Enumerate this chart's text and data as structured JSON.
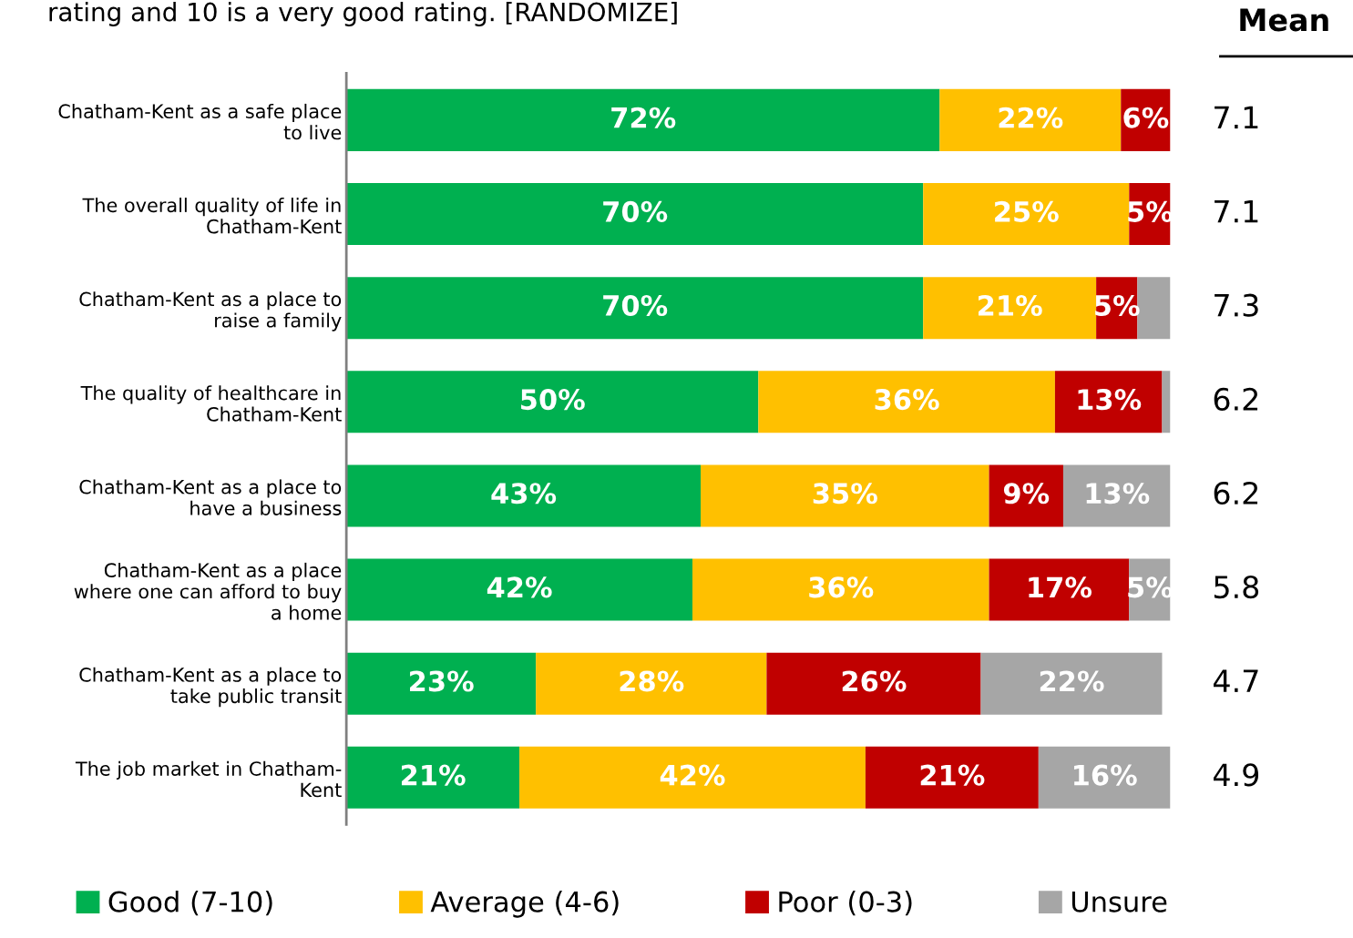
{
  "chart_data": {
    "type": "bar",
    "orientation": "horizontal",
    "stacked": true,
    "title": "rating and 10 is a very good rating. [RANDOMIZE]",
    "categories": [
      "Chatham-Kent as a safe place\nto live",
      "The overall quality of life in\nChatham-Kent",
      "Chatham-Kent as a place to\nraise a family",
      "The quality of healthcare in\nChatham-Kent",
      "Chatham-Kent as a place to\nhave a business",
      "Chatham-Kent as a place\nwhere one can afford to buy\na home",
      "Chatham-Kent as a place to\ntake public transit",
      "The job market in Chatham-\nKent"
    ],
    "series": [
      {
        "name": "Good (7-10)",
        "color": "#00b050",
        "values": [
          72,
          70,
          70,
          50,
          43,
          42,
          23,
          21
        ],
        "value_labels": [
          "72%",
          "70%",
          "70%",
          "50%",
          "43%",
          "42%",
          "23%",
          "21%"
        ]
      },
      {
        "name": "Average (4-6)",
        "color": "#ffc000",
        "values": [
          22,
          25,
          21,
          36,
          35,
          36,
          28,
          42
        ],
        "value_labels": [
          "22%",
          "25%",
          "21%",
          "36%",
          "35%",
          "36%",
          "28%",
          "42%"
        ]
      },
      {
        "name": "Poor (0-3)",
        "color": "#c00000",
        "values": [
          6,
          5,
          5,
          13,
          9,
          17,
          26,
          21
        ],
        "value_labels": [
          "6%",
          "5%",
          "5%",
          "13%",
          "9%",
          "17%",
          "26%",
          "21%"
        ]
      },
      {
        "name": "Unsure",
        "color": "#a6a6a6",
        "values": [
          0,
          0,
          4,
          1,
          13,
          5,
          22,
          16
        ],
        "value_labels": [
          null,
          null,
          null,
          null,
          "13%",
          "5%",
          "22%",
          "16%"
        ]
      }
    ],
    "annotations": [
      "Mean",
      "7.1",
      "7.1",
      "7.3",
      "6.2",
      "6.2",
      "5.8",
      "4.7",
      "4.9"
    ],
    "tick_labels": "y",
    "legend": "bottom",
    "grid": false
  }
}
